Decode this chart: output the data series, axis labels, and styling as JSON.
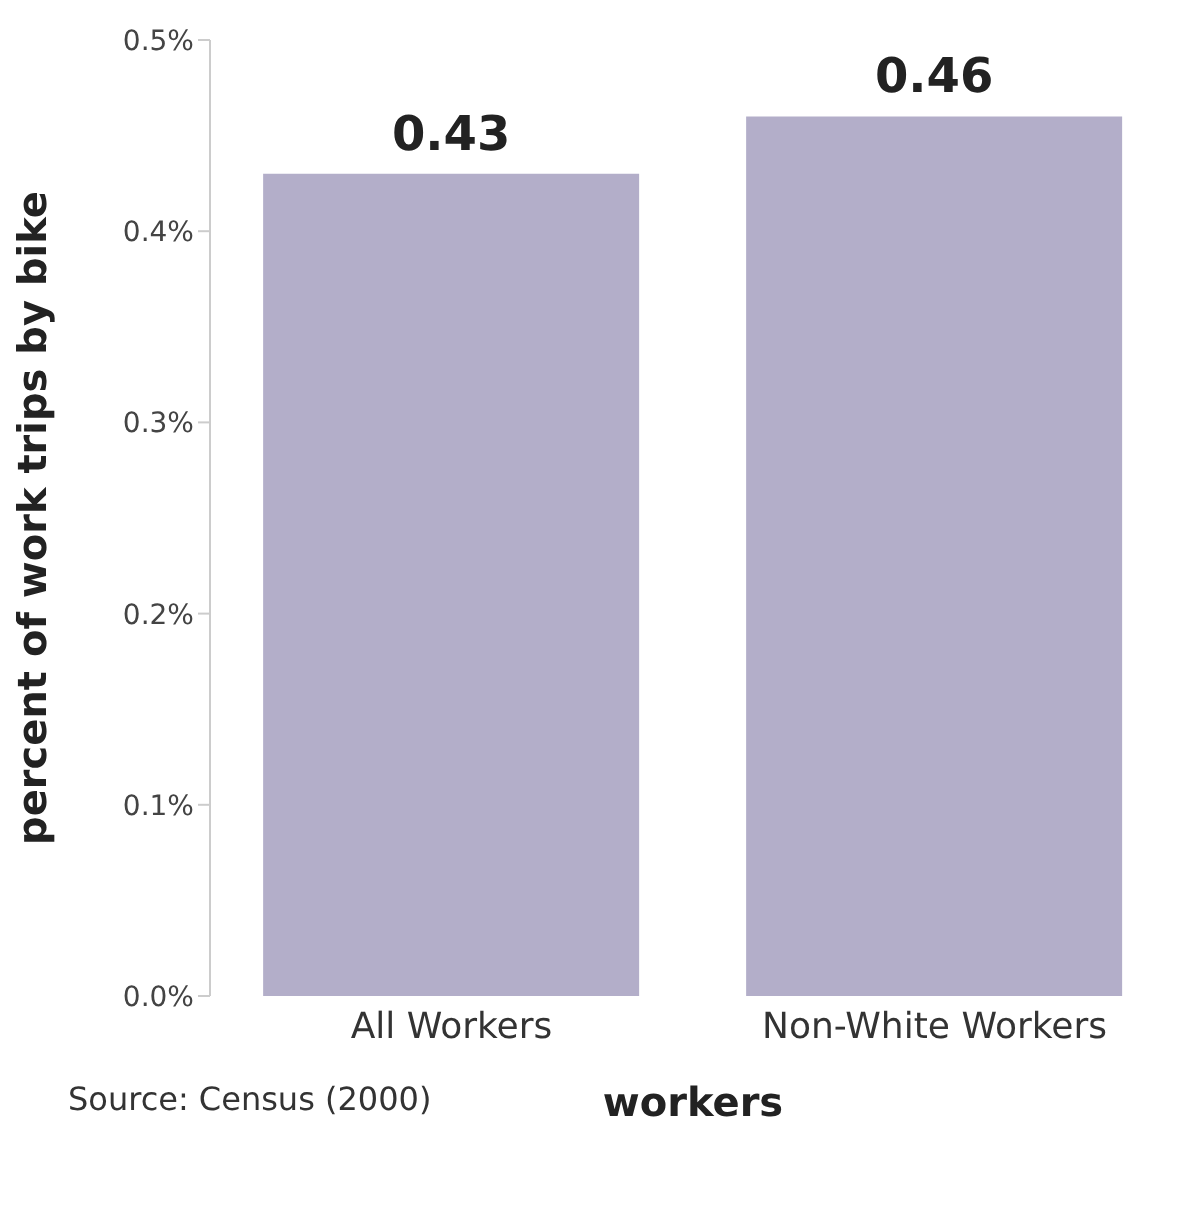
{
  "chart_data": {
    "type": "bar",
    "xlabel": "workers",
    "ylabel": "percent of work trips by bike",
    "categories": [
      "All Workers",
      "Non-White Workers"
    ],
    "values": [
      0.43,
      0.46
    ],
    "color": "#b3aec9",
    "ylim": [
      0,
      0.5
    ],
    "yticks": [
      {
        "value": 0,
        "label": "0.0%"
      },
      {
        "value": 0.1,
        "label": "0.1%"
      },
      {
        "value": 0.2,
        "label": "0.2%"
      },
      {
        "value": 0.3,
        "label": "0.3%"
      },
      {
        "value": 0.4,
        "label": "0.4%"
      },
      {
        "value": 0.5,
        "label": "0.5%"
      }
    ],
    "data_labels": true,
    "grid": false,
    "legend": false,
    "annotations": [
      "Source: Census (2000)"
    ]
  }
}
